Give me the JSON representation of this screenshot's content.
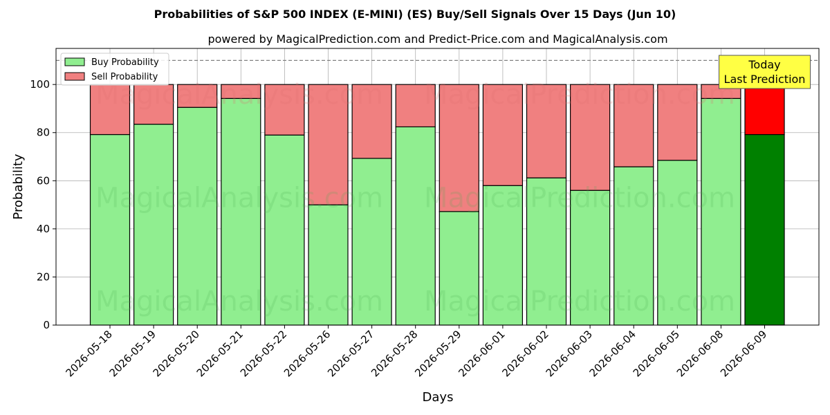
{
  "chart_data": {
    "type": "bar",
    "stacked": true,
    "title": "Probabilities of S&P 500 INDEX (E-MINI) (ES) Buy/Sell Signals Over 15 Days (Jun 10)",
    "subtitle": "powered by MagicalPrediction.com and Predict-Price.com and MagicalAnalysis.com",
    "xlabel": "Days",
    "ylabel": "Probability",
    "ylim": [
      0,
      115
    ],
    "yticks": [
      0,
      20,
      40,
      60,
      80,
      100
    ],
    "grid": true,
    "legend_position": "top-left",
    "reference_line": 110,
    "categories": [
      "2026-05-18",
      "2026-05-19",
      "2026-05-20",
      "2026-05-21",
      "2026-05-22",
      "2026-05-26",
      "2026-05-27",
      "2026-05-28",
      "2026-05-29",
      "2026-06-01",
      "2026-06-02",
      "2026-06-03",
      "2026-06-04",
      "2026-06-05",
      "2026-06-08",
      "2026-06-09"
    ],
    "series": [
      {
        "name": "Buy Probability",
        "color": "#90ee90",
        "highlight_color": "#008000",
        "values": [
          79.2,
          83.5,
          90.5,
          94.2,
          79.0,
          50.0,
          69.3,
          82.4,
          47.2,
          58.0,
          61.2,
          56.0,
          65.8,
          68.5,
          94.2,
          79.2
        ]
      },
      {
        "name": "Sell Probability",
        "color": "#f08080",
        "highlight_color": "#ff0000",
        "values": [
          20.8,
          16.5,
          9.5,
          5.8,
          21.0,
          50.0,
          30.7,
          17.6,
          52.8,
          42.0,
          38.8,
          44.0,
          34.2,
          31.5,
          5.8,
          20.8
        ]
      }
    ],
    "highlight_index": 15,
    "annotation": {
      "lines": [
        "Today",
        "Last Prediction"
      ],
      "color": "#ffff44"
    },
    "watermarks": [
      "MagicalAnalysis.com",
      "MagicalPrediction.com"
    ]
  }
}
